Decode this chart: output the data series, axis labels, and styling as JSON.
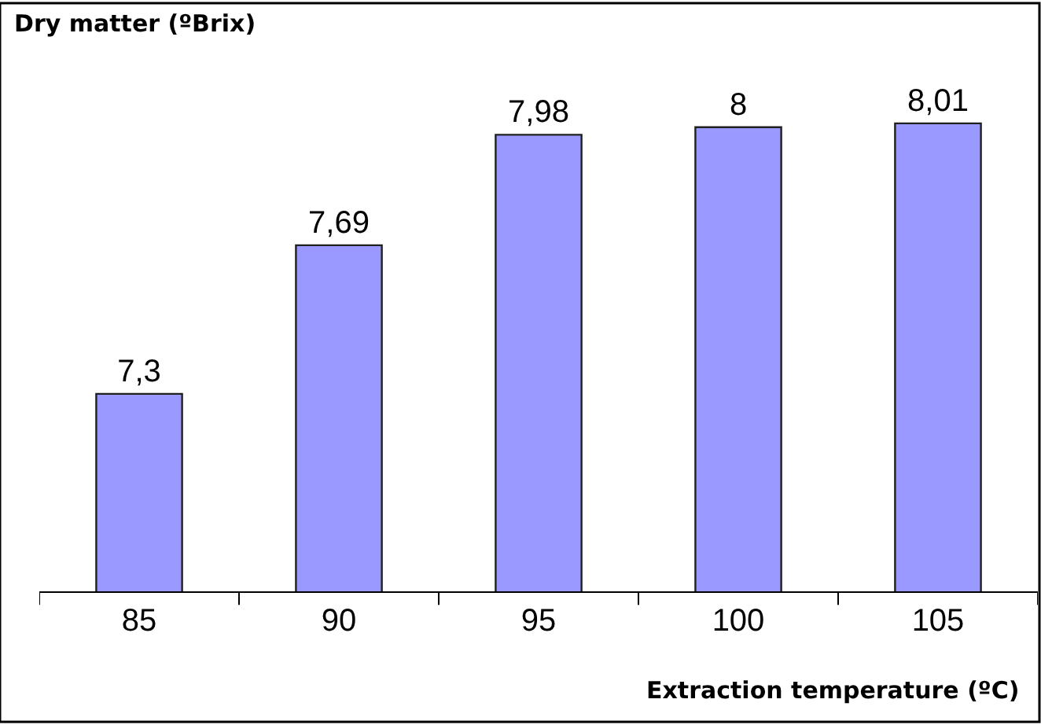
{
  "chart_data": {
    "type": "bar",
    "title": "Dry matter (ºBrix)",
    "xlabel": "Extraction temperature (ºC)",
    "categories": [
      "85",
      "90",
      "95",
      "100",
      "105"
    ],
    "values": [
      7.3,
      7.69,
      7.98,
      8,
      8.01
    ],
    "value_labels": [
      "7,3",
      "7,69",
      "7,98",
      "8",
      "8,01"
    ],
    "color": "#9999ff",
    "tick_labels": "x"
  }
}
